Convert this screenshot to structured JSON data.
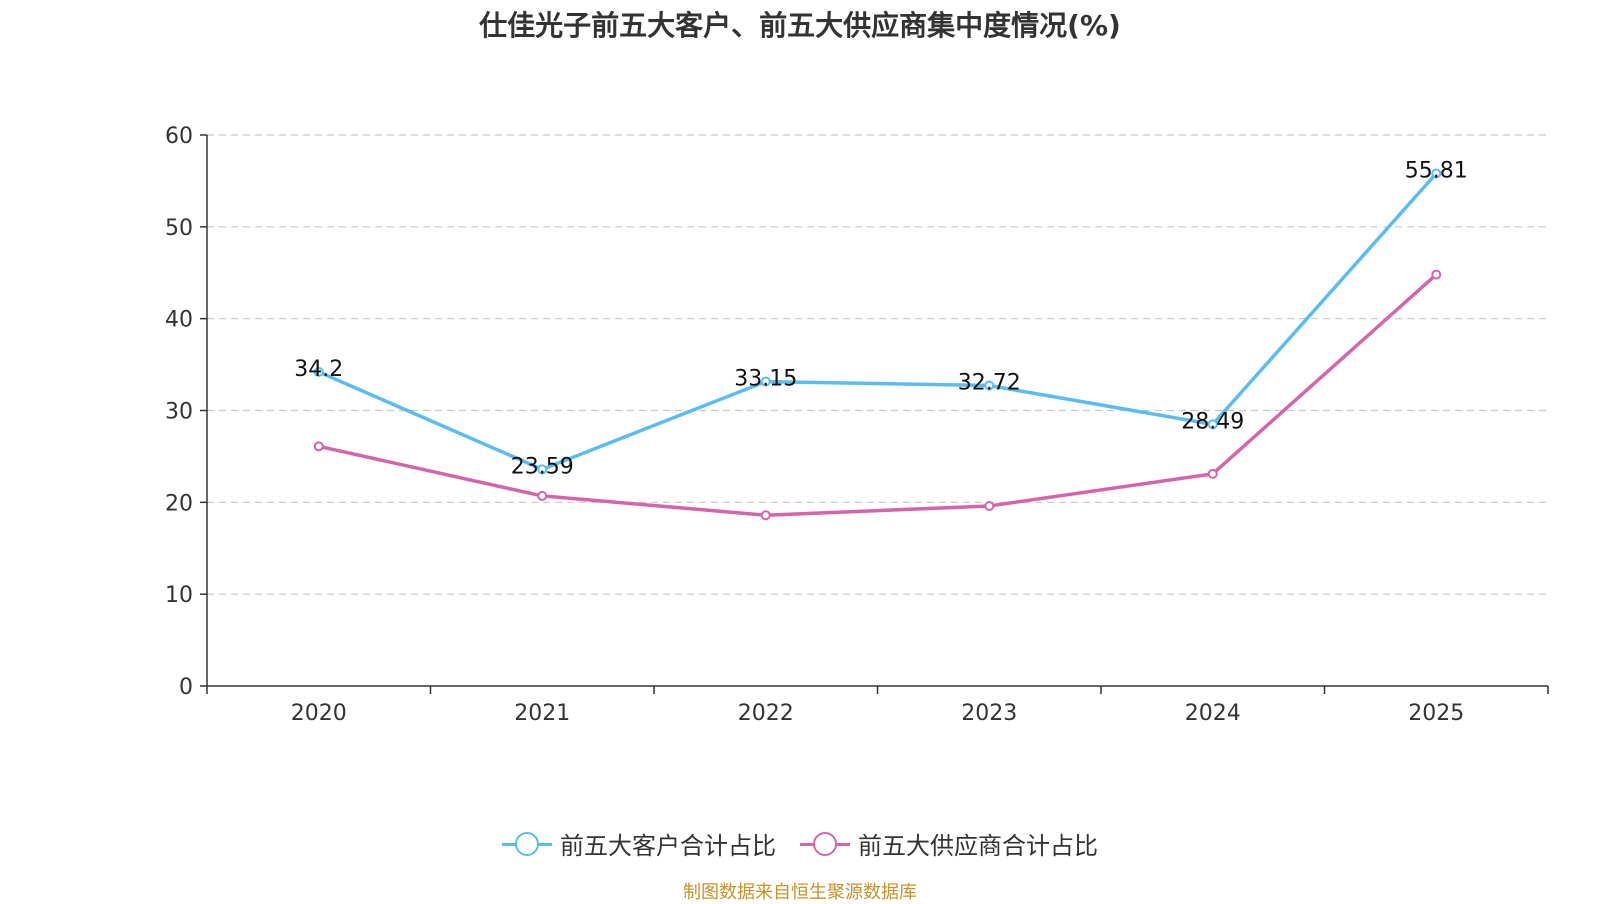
{
  "chart_data": {
    "type": "line",
    "title": "仕佳光子前五大客户、前五大供应商集中度情况(%)",
    "categories": [
      "2020",
      "2021",
      "2022",
      "2023",
      "2024",
      "2025"
    ],
    "ylim": [
      0,
      60
    ],
    "yticks": [
      0,
      10,
      20,
      30,
      40,
      50,
      60
    ],
    "grid": true,
    "legend_position": "bottom",
    "series": [
      {
        "name": "前五大客户合计占比",
        "color": "#5bbcf0",
        "values": [
          34.2,
          23.59,
          33.15,
          32.72,
          28.49,
          55.81
        ],
        "labels": [
          "34.2",
          "23.59",
          "33.15",
          "32.72",
          "28.49",
          "55.81"
        ]
      },
      {
        "name": "前五大供应商合计占比",
        "color": "#d465aa",
        "values": [
          26.1,
          20.7,
          18.6,
          19.6,
          23.1,
          44.8
        ],
        "labels": null
      }
    ],
    "source": "制图数据来自恒生聚源数据库"
  }
}
